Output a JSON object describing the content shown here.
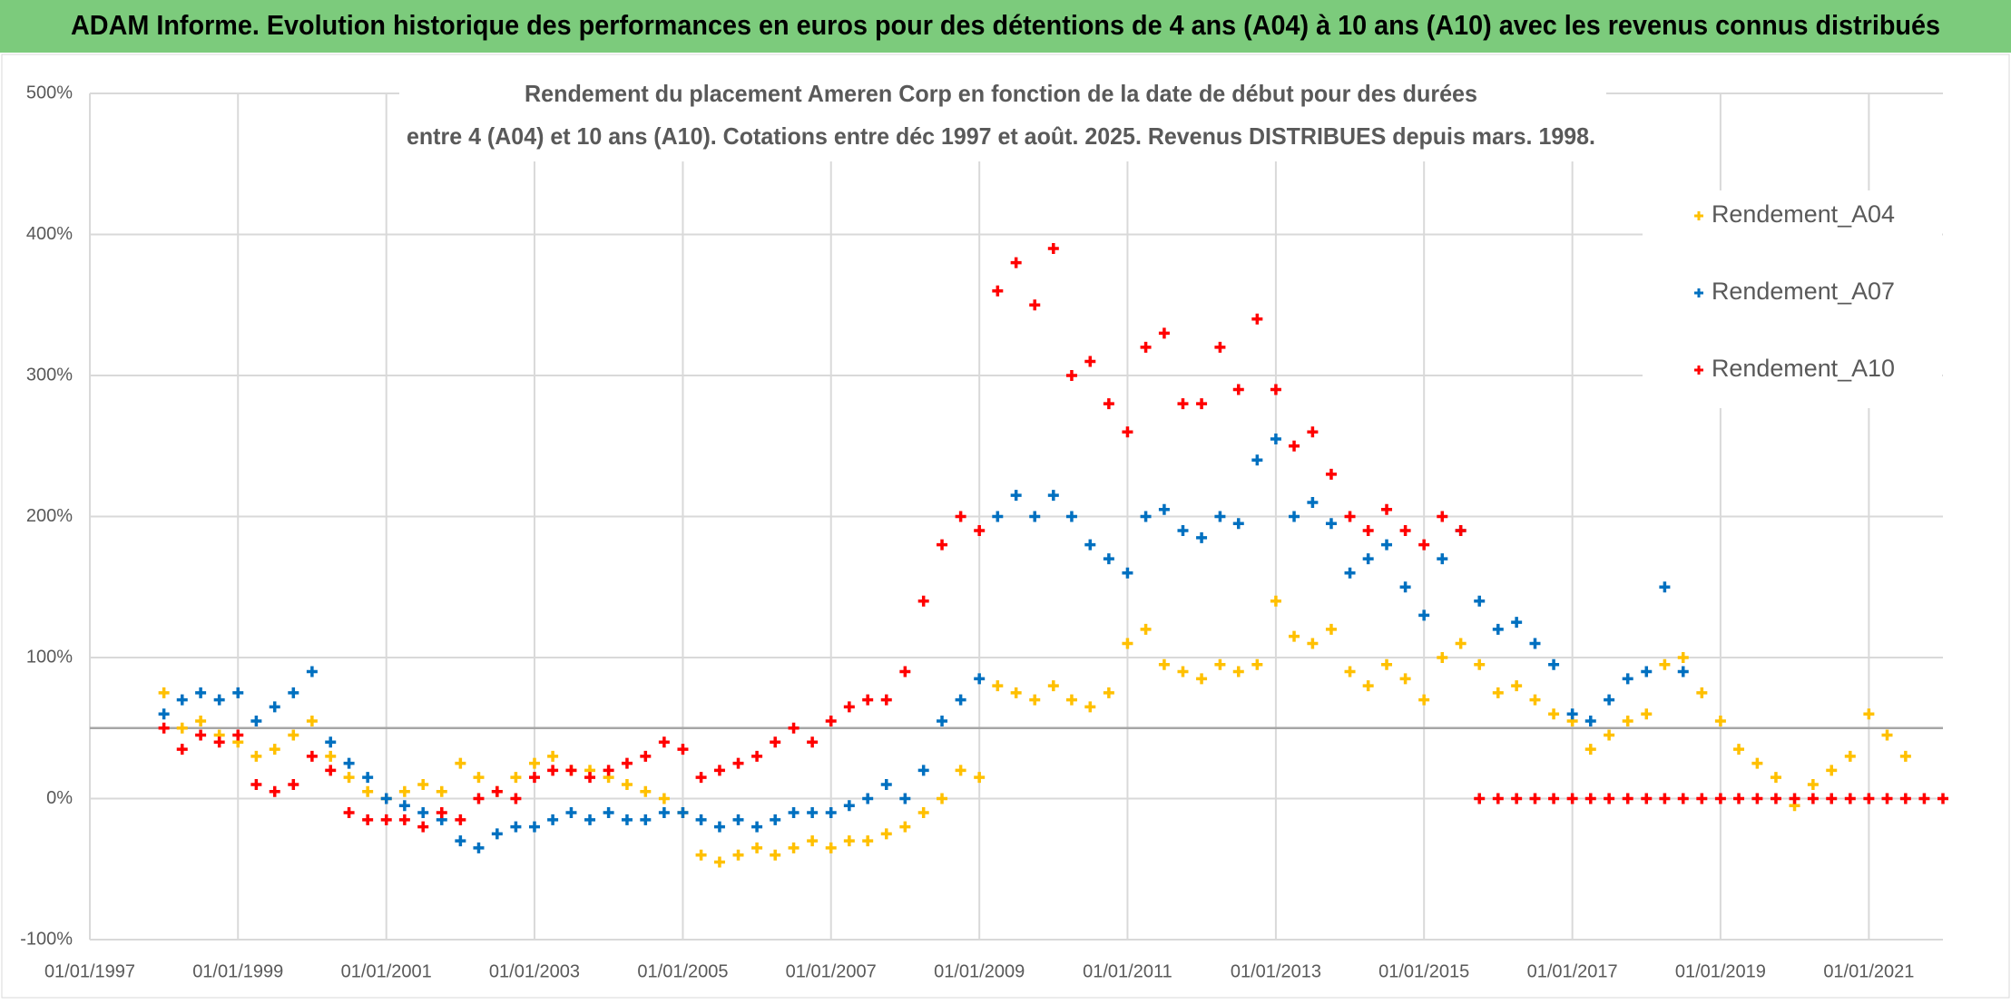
{
  "header": {
    "title": "ADAM Informe. Evolution historique des performances en euros pour des détentions de 4 ans (A04) à 10 ans (A10) avec les revenus connus distribués"
  },
  "chart_data": {
    "type": "scatter",
    "title": [
      "Rendement du placement Ameren Corp en fonction de la date de début pour des durées",
      "entre 4 (A04) et 10 ans (A10). Cotations entre déc 1997 et août. 2025. Revenus DISTRIBUES depuis mars. 1998."
    ],
    "xlim": [
      "01/01/1997",
      "01/01/2022"
    ],
    "xticks": [
      "01/01/1997",
      "01/01/1999",
      "01/01/2001",
      "01/01/2003",
      "01/01/2005",
      "01/01/2007",
      "01/01/2009",
      "01/01/2011",
      "01/01/2013",
      "01/01/2015",
      "01/01/2017",
      "01/01/2019",
      "01/01/2021"
    ],
    "ylim": [
      -100,
      500
    ],
    "yticks": [
      {
        "value": -100,
        "label": "-100%"
      },
      {
        "value": 0,
        "label": "0%"
      },
      {
        "value": 100,
        "label": "100%"
      },
      {
        "value": 200,
        "label": "200%"
      },
      {
        "value": 300,
        "label": "300%"
      },
      {
        "value": 400,
        "label": "400%"
      },
      {
        "value": 500,
        "label": "500%"
      }
    ],
    "grid": true,
    "hline": 50,
    "legend": "upper right",
    "series": [
      {
        "name": "Rendement_A04",
        "color": "#FFC000",
        "x": [
          "01/01/1998",
          "01/04/1998",
          "01/07/1998",
          "01/10/1998",
          "01/01/1999",
          "01/04/1999",
          "01/07/1999",
          "01/10/1999",
          "01/01/2000",
          "01/04/2000",
          "01/07/2000",
          "01/10/2000",
          "01/01/2001",
          "01/04/2001",
          "01/07/2001",
          "01/10/2001",
          "01/01/2002",
          "01/04/2002",
          "01/07/2002",
          "01/10/2002",
          "01/01/2003",
          "01/04/2003",
          "01/07/2003",
          "01/10/2003",
          "01/01/2004",
          "01/04/2004",
          "01/07/2004",
          "01/10/2004",
          "01/01/2005",
          "01/04/2005",
          "01/07/2005",
          "01/10/2005",
          "01/01/2006",
          "01/04/2006",
          "01/07/2006",
          "01/10/2006",
          "01/01/2007",
          "01/04/2007",
          "01/07/2007",
          "01/10/2007",
          "01/01/2008",
          "01/04/2008",
          "01/07/2008",
          "01/10/2008",
          "01/01/2009",
          "01/04/2009",
          "01/07/2009",
          "01/10/2009",
          "01/01/2010",
          "01/04/2010",
          "01/07/2010",
          "01/10/2010",
          "01/01/2011",
          "01/04/2011",
          "01/07/2011",
          "01/10/2011",
          "01/01/2012",
          "01/04/2012",
          "01/07/2012",
          "01/10/2012",
          "01/01/2013",
          "01/04/2013",
          "01/07/2013",
          "01/10/2013",
          "01/01/2014",
          "01/04/2014",
          "01/07/2014",
          "01/10/2014",
          "01/01/2015",
          "01/04/2015",
          "01/07/2015",
          "01/10/2015",
          "01/01/2016",
          "01/04/2016",
          "01/07/2016",
          "01/10/2016",
          "01/01/2017",
          "01/04/2017",
          "01/07/2017",
          "01/10/2017",
          "01/01/2018",
          "01/04/2018",
          "01/07/2018",
          "01/10/2018",
          "01/01/2019",
          "01/04/2019",
          "01/07/2019",
          "01/10/2019",
          "01/01/2020",
          "01/04/2020",
          "01/07/2020",
          "01/10/2020",
          "01/01/2021",
          "01/04/2021",
          "01/07/2021"
        ],
        "values": [
          75,
          50,
          55,
          45,
          40,
          30,
          35,
          45,
          55,
          30,
          15,
          5,
          0,
          5,
          10,
          5,
          25,
          15,
          5,
          15,
          25,
          30,
          20,
          20,
          15,
          10,
          5,
          0,
          -10,
          -40,
          -45,
          -40,
          -35,
          -40,
          -35,
          -30,
          -35,
          -30,
          -30,
          -25,
          -20,
          -10,
          0,
          20,
          15,
          80,
          75,
          70,
          80,
          70,
          65,
          75,
          110,
          120,
          95,
          90,
          85,
          95,
          90,
          95,
          140,
          115,
          110,
          120,
          90,
          80,
          95,
          85,
          70,
          100,
          110,
          95,
          75,
          80,
          70,
          60,
          55,
          35,
          45,
          55,
          60,
          95,
          100,
          75,
          55,
          35,
          25,
          15,
          -5,
          10,
          20,
          30,
          60,
          45,
          30
        ]
      },
      {
        "name": "Rendement_A07",
        "color": "#0070C0",
        "x": [
          "01/01/1998",
          "01/04/1998",
          "01/07/1998",
          "01/10/1998",
          "01/01/1999",
          "01/04/1999",
          "01/07/1999",
          "01/10/1999",
          "01/01/2000",
          "01/04/2000",
          "01/07/2000",
          "01/10/2000",
          "01/01/2001",
          "01/04/2001",
          "01/07/2001",
          "01/10/2001",
          "01/01/2002",
          "01/04/2002",
          "01/07/2002",
          "01/10/2002",
          "01/01/2003",
          "01/04/2003",
          "01/07/2003",
          "01/10/2003",
          "01/01/2004",
          "01/04/2004",
          "01/07/2004",
          "01/10/2004",
          "01/01/2005",
          "01/04/2005",
          "01/07/2005",
          "01/10/2005",
          "01/01/2006",
          "01/04/2006",
          "01/07/2006",
          "01/10/2006",
          "01/01/2007",
          "01/04/2007",
          "01/07/2007",
          "01/10/2007",
          "01/01/2008",
          "01/04/2008",
          "01/07/2008",
          "01/10/2008",
          "01/01/2009",
          "01/04/2009",
          "01/07/2009",
          "01/10/2009",
          "01/01/2010",
          "01/04/2010",
          "01/07/2010",
          "01/10/2010",
          "01/01/2011",
          "01/04/2011",
          "01/07/2011",
          "01/10/2011",
          "01/01/2012",
          "01/04/2012",
          "01/07/2012",
          "01/10/2012",
          "01/01/2013",
          "01/04/2013",
          "01/07/2013",
          "01/10/2013",
          "01/01/2014",
          "01/04/2014",
          "01/07/2014",
          "01/10/2014",
          "01/01/2015",
          "01/04/2015",
          "01/07/2015",
          "01/10/2015",
          "01/01/2016",
          "01/04/2016",
          "01/07/2016",
          "01/10/2016",
          "01/01/2017",
          "01/04/2017",
          "01/07/2017",
          "01/10/2017",
          "01/01/2018",
          "01/04/2018",
          "01/07/2018"
        ],
        "values": [
          60,
          70,
          75,
          70,
          75,
          55,
          65,
          75,
          90,
          40,
          25,
          15,
          0,
          -5,
          -10,
          -15,
          -30,
          -35,
          -25,
          -20,
          -20,
          -15,
          -10,
          -15,
          -10,
          -15,
          -15,
          -10,
          -10,
          -15,
          -20,
          -15,
          -20,
          -15,
          -10,
          -10,
          -10,
          -5,
          0,
          10,
          0,
          20,
          55,
          70,
          85,
          200,
          215,
          200,
          215,
          200,
          180,
          170,
          160,
          200,
          205,
          190,
          185,
          200,
          195,
          240,
          255,
          200,
          210,
          195,
          160,
          170,
          180,
          150,
          130,
          170,
          190,
          140,
          120,
          125,
          110,
          95,
          60,
          55,
          70,
          85,
          90,
          150,
          90
        ]
      },
      {
        "name": "Rendement_A10",
        "color": "#FF0000",
        "x": [
          "01/01/1998",
          "01/04/1998",
          "01/07/1998",
          "01/10/1998",
          "01/01/1999",
          "01/04/1999",
          "01/07/1999",
          "01/10/1999",
          "01/01/2000",
          "01/04/2000",
          "01/07/2000",
          "01/10/2000",
          "01/01/2001",
          "01/04/2001",
          "01/07/2001",
          "01/10/2001",
          "01/01/2002",
          "01/04/2002",
          "01/07/2002",
          "01/10/2002",
          "01/01/2003",
          "01/04/2003",
          "01/07/2003",
          "01/10/2003",
          "01/01/2004",
          "01/04/2004",
          "01/07/2004",
          "01/10/2004",
          "01/01/2005",
          "01/04/2005",
          "01/07/2005",
          "01/10/2005",
          "01/01/2006",
          "01/04/2006",
          "01/07/2006",
          "01/10/2006",
          "01/01/2007",
          "01/04/2007",
          "01/07/2007",
          "01/10/2007",
          "01/01/2008",
          "01/04/2008",
          "01/07/2008",
          "01/10/2008",
          "01/01/2009",
          "01/04/2009",
          "01/07/2009",
          "01/10/2009",
          "01/01/2010",
          "01/04/2010",
          "01/07/2010",
          "01/10/2010",
          "01/01/2011",
          "01/04/2011",
          "01/07/2011",
          "01/10/2011",
          "01/01/2012",
          "01/04/2012",
          "01/07/2012",
          "01/10/2012",
          "01/01/2013",
          "01/04/2013",
          "01/07/2013",
          "01/10/2013",
          "01/01/2014",
          "01/04/2014",
          "01/07/2014",
          "01/10/2014",
          "01/01/2015",
          "01/04/2015",
          "01/07/2015",
          "01/10/2015",
          "01/01/2016",
          "01/04/2016",
          "01/07/2016",
          "01/10/2016",
          "01/01/2017",
          "01/04/2017",
          "01/07/2017",
          "01/10/2017",
          "01/01/2018",
          "01/04/2018",
          "01/07/2018",
          "01/10/2018",
          "01/01/2019",
          "01/04/2019",
          "01/07/2019",
          "01/10/2019",
          "01/01/2020",
          "01/04/2020",
          "01/07/2020",
          "01/10/2020",
          "01/01/2021",
          "01/04/2021",
          "01/07/2021",
          "01/10/2021",
          "01/01/2022"
        ],
        "values": [
          50,
          35,
          45,
          40,
          45,
          10,
          5,
          10,
          30,
          20,
          -10,
          -15,
          -15,
          -15,
          -20,
          -10,
          -15,
          0,
          5,
          0,
          15,
          20,
          20,
          15,
          20,
          25,
          30,
          40,
          35,
          15,
          20,
          25,
          30,
          40,
          50,
          40,
          55,
          65,
          70,
          70,
          90,
          140,
          180,
          200,
          190,
          360,
          380,
          350,
          390,
          300,
          310,
          280,
          260,
          320,
          330,
          280,
          280,
          320,
          290,
          340,
          290,
          250,
          260,
          230,
          200,
          190,
          205,
          190,
          180,
          200,
          190,
          0,
          0,
          0,
          0,
          0,
          0,
          0,
          0,
          0,
          0,
          0,
          0,
          0,
          0,
          0,
          0,
          0,
          0,
          0,
          0,
          0,
          0,
          0,
          0,
          0,
          0
        ]
      }
    ]
  }
}
